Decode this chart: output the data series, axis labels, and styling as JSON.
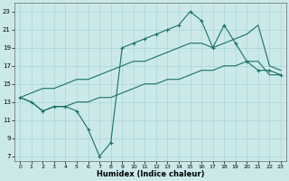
{
  "xlabel": "Humidex (Indice chaleur)",
  "bg_color": "#cce9ea",
  "grid_color": "#a8d5d6",
  "line_color": "#1a7068",
  "xlim": [
    -0.5,
    23.5
  ],
  "ylim": [
    6.5,
    24.0
  ],
  "xticks": [
    0,
    1,
    2,
    3,
    4,
    5,
    6,
    7,
    8,
    9,
    10,
    11,
    12,
    13,
    14,
    15,
    16,
    17,
    18,
    19,
    20,
    21,
    22,
    23
  ],
  "yticks": [
    7,
    9,
    11,
    13,
    15,
    17,
    19,
    21,
    23
  ],
  "line1_x": [
    0,
    1,
    2,
    3,
    4,
    5,
    6,
    7,
    8,
    9,
    10,
    11,
    12,
    13,
    14,
    15,
    16,
    17,
    18,
    19,
    20,
    21,
    22,
    23
  ],
  "line1_y": [
    13.5,
    13.0,
    12.0,
    12.5,
    12.5,
    12.0,
    10.0,
    7.0,
    8.5,
    19.0,
    19.5,
    20.0,
    20.5,
    21.0,
    21.5,
    23.0,
    22.0,
    19.0,
    21.5,
    19.5,
    17.5,
    16.5,
    16.5,
    16.0
  ],
  "line2_x": [
    0,
    1,
    2,
    3,
    4,
    5,
    6,
    7,
    8,
    9,
    10,
    11,
    12,
    13,
    14,
    15,
    16,
    17,
    18,
    19,
    20,
    21,
    22,
    23
  ],
  "line2_y": [
    13.5,
    14.0,
    14.5,
    14.5,
    15.0,
    15.5,
    15.5,
    16.0,
    16.5,
    17.0,
    17.5,
    17.5,
    18.0,
    18.5,
    19.0,
    19.5,
    19.5,
    19.0,
    19.5,
    20.0,
    20.5,
    21.5,
    17.0,
    16.5
  ],
  "line3_x": [
    0,
    1,
    2,
    3,
    4,
    5,
    6,
    7,
    8,
    9,
    10,
    11,
    12,
    13,
    14,
    15,
    16,
    17,
    18,
    19,
    20,
    21,
    22,
    23
  ],
  "line3_y": [
    13.5,
    13.0,
    12.0,
    12.5,
    12.5,
    13.0,
    13.0,
    13.5,
    13.5,
    14.0,
    14.5,
    15.0,
    15.0,
    15.5,
    15.5,
    16.0,
    16.5,
    16.5,
    17.0,
    17.0,
    17.5,
    17.5,
    16.0,
    16.0
  ]
}
